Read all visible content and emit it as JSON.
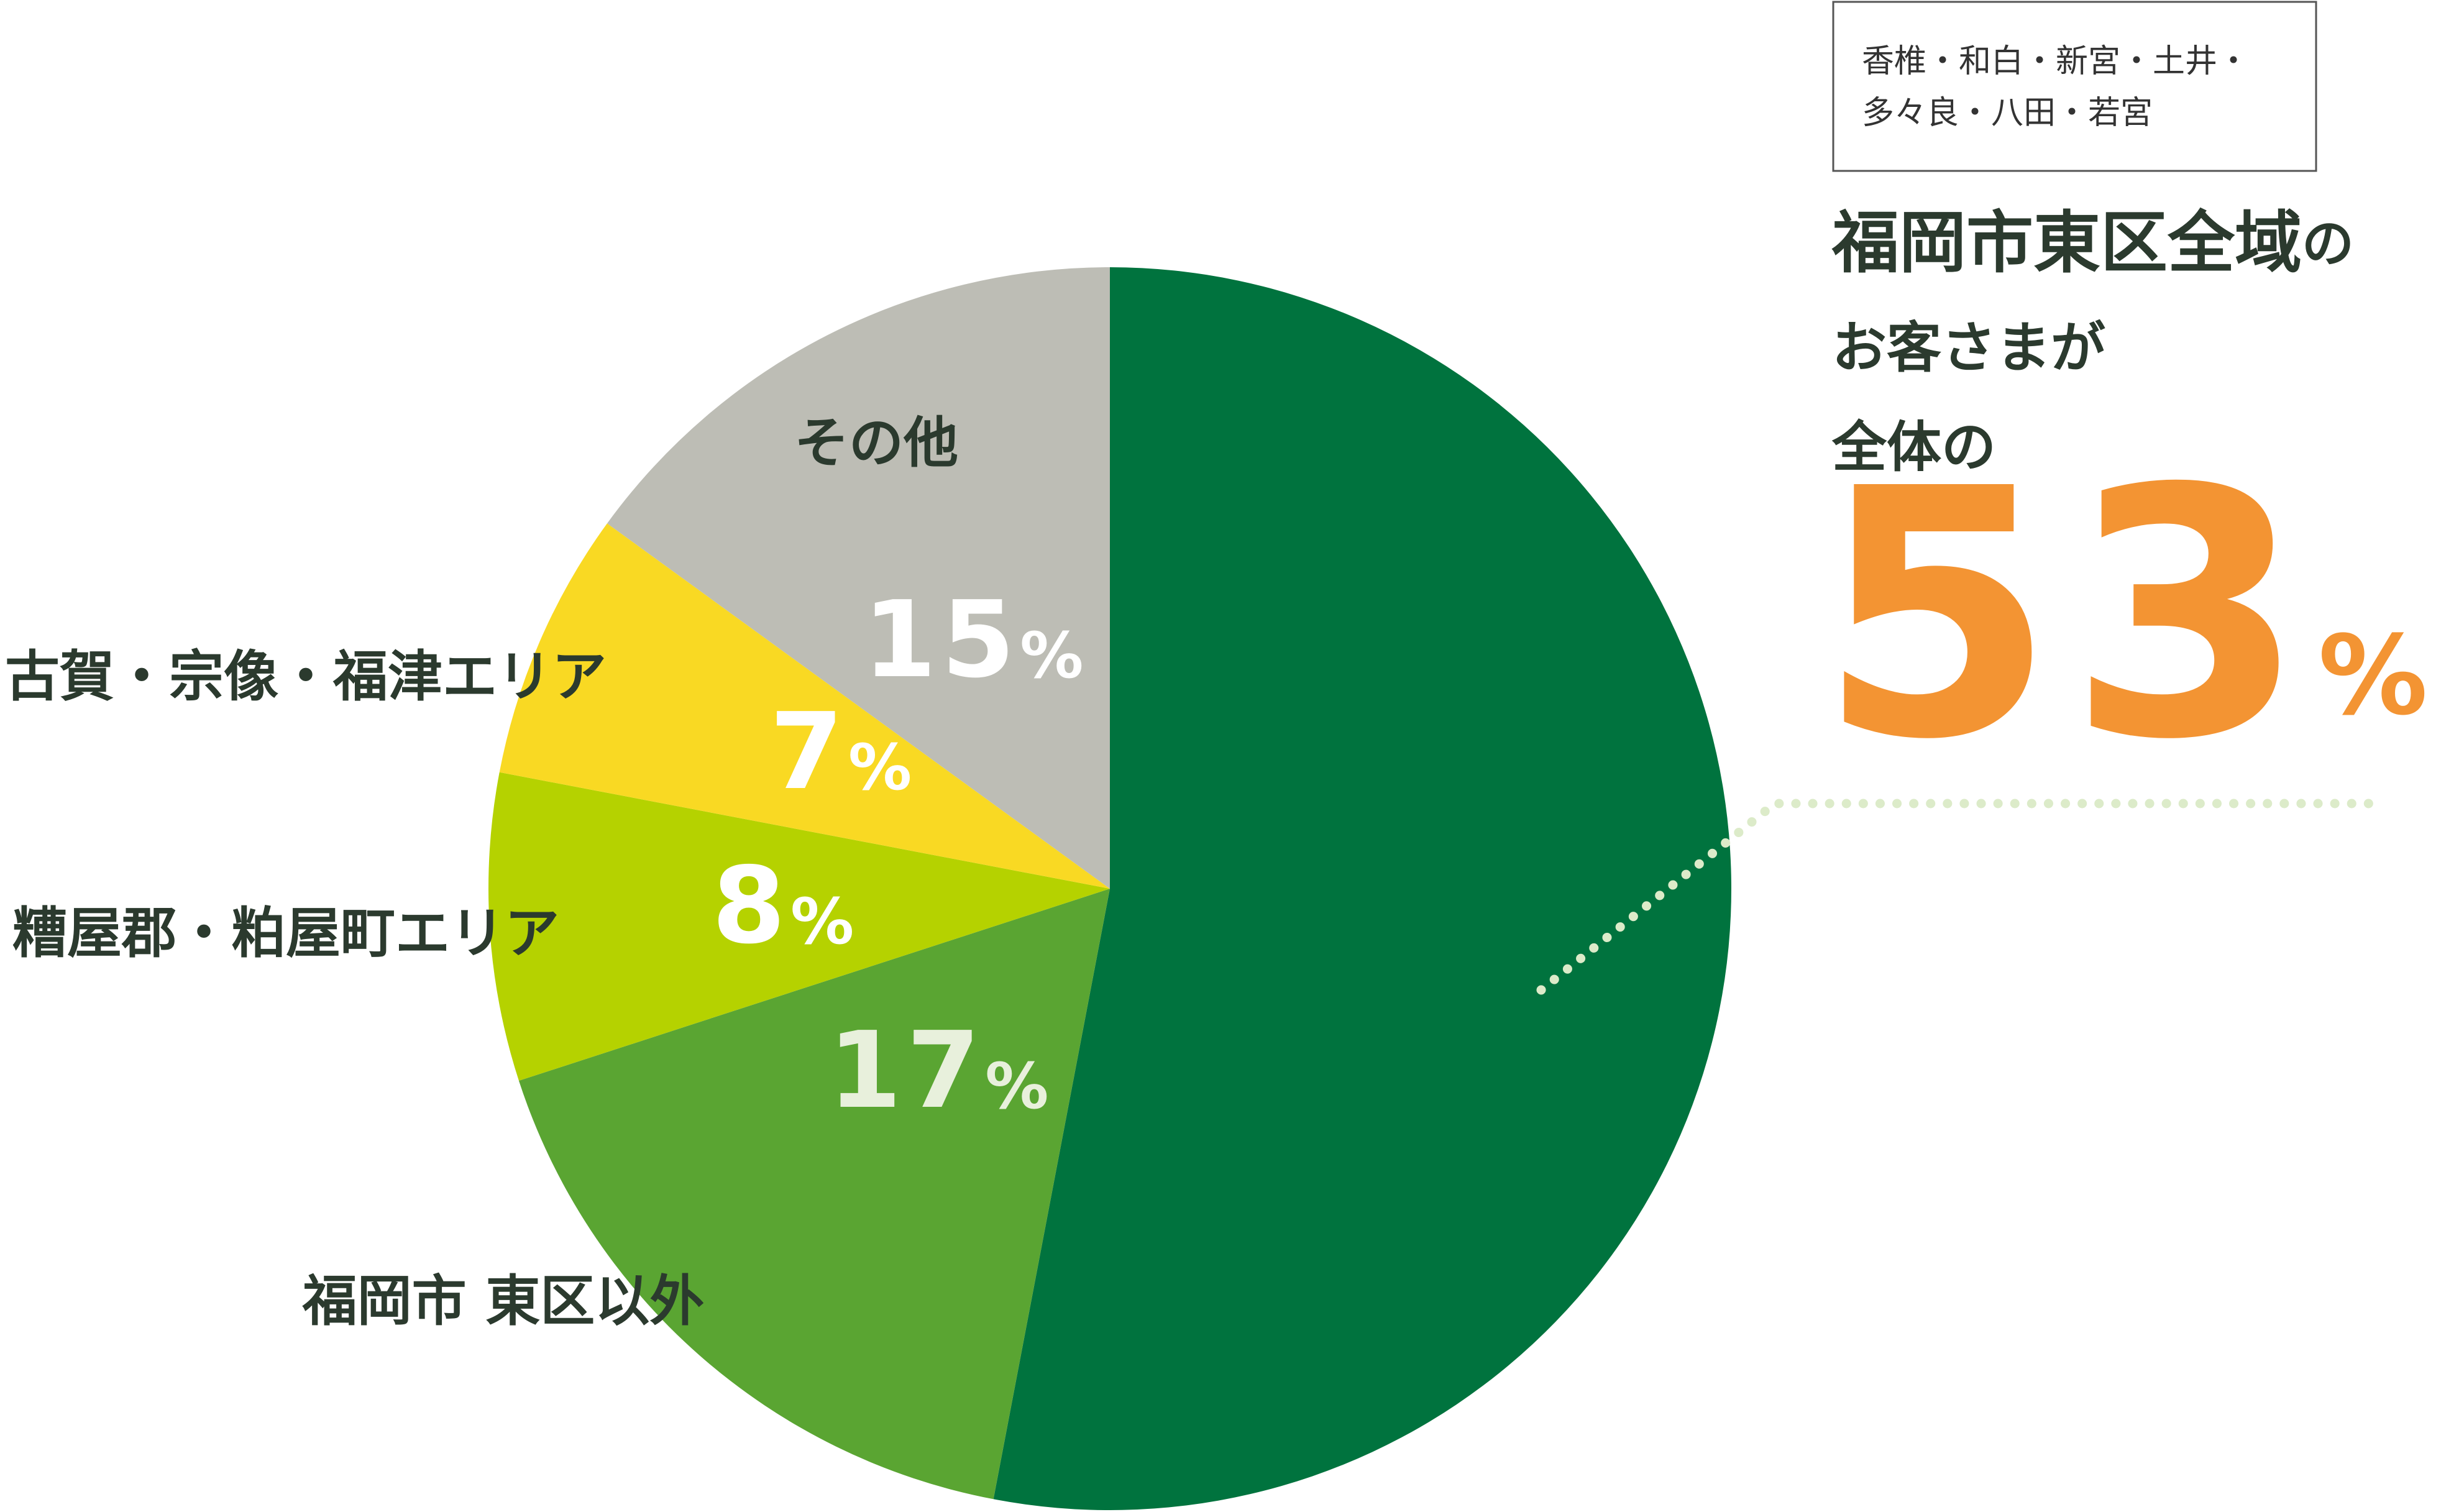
{
  "chart_data": {
    "type": "pie",
    "categories": [
      "福岡市東区全域",
      "福岡市 東区以外",
      "糟屋郡・粕屋町エリア",
      "古賀・宗像・福津エリア",
      "その他"
    ],
    "values": [
      53,
      17,
      8,
      7,
      15
    ],
    "value_labels": [
      "53%",
      "17%",
      "8%",
      "7%",
      "15%"
    ],
    "colors": [
      "#00733e",
      "#5aa532",
      "#b5d200",
      "#f9d923",
      "#bdbdb5"
    ],
    "callout": {
      "suffix": "の",
      "lines": [
        "お客さまが",
        "全体の"
      ],
      "areas": [
        "香椎・和白・新宮・土井・",
        "多々良・八田・若宮"
      ]
    }
  }
}
